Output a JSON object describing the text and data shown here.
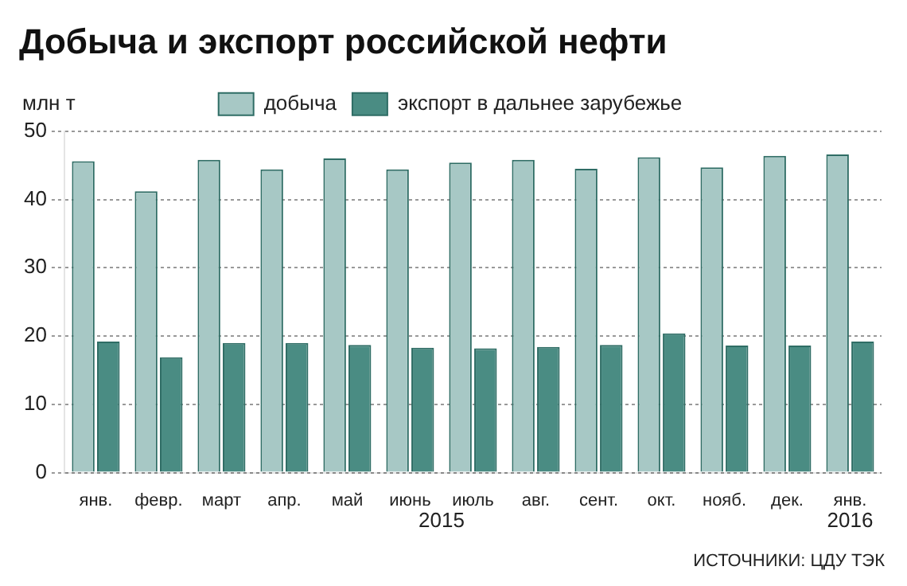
{
  "chart_data": {
    "type": "bar",
    "title": "Добыча и экспорт российской нефти",
    "ylabel": "млн т",
    "categories": [
      "янв.",
      "февр.",
      "март",
      "апр.",
      "май",
      "июнь",
      "июль",
      "авг.",
      "сент.",
      "окт.",
      "нояб.",
      "дек.",
      "янв."
    ],
    "series": [
      {
        "name": "добыча",
        "color": "#a7c8c5",
        "values": [
          45.6,
          41.2,
          45.8,
          44.4,
          46.0,
          44.4,
          45.4,
          45.8,
          44.5,
          46.2,
          44.7,
          46.4,
          46.6
        ]
      },
      {
        "name": "экспорт в дальнее зарубежье",
        "color": "#4a8c83",
        "values": [
          19.2,
          16.9,
          19.0,
          19.0,
          18.7,
          18.3,
          18.2,
          18.4,
          18.7,
          20.4,
          18.6,
          18.6,
          19.2
        ]
      }
    ],
    "ylim": [
      0,
      50
    ],
    "yticks": [
      0,
      10,
      20,
      30,
      40,
      50
    ],
    "grid": "y",
    "legend": "top",
    "annotations": [
      "2015",
      "2016",
      "ИСТОЧНИКИ: ЦДУ ТЭК"
    ]
  }
}
